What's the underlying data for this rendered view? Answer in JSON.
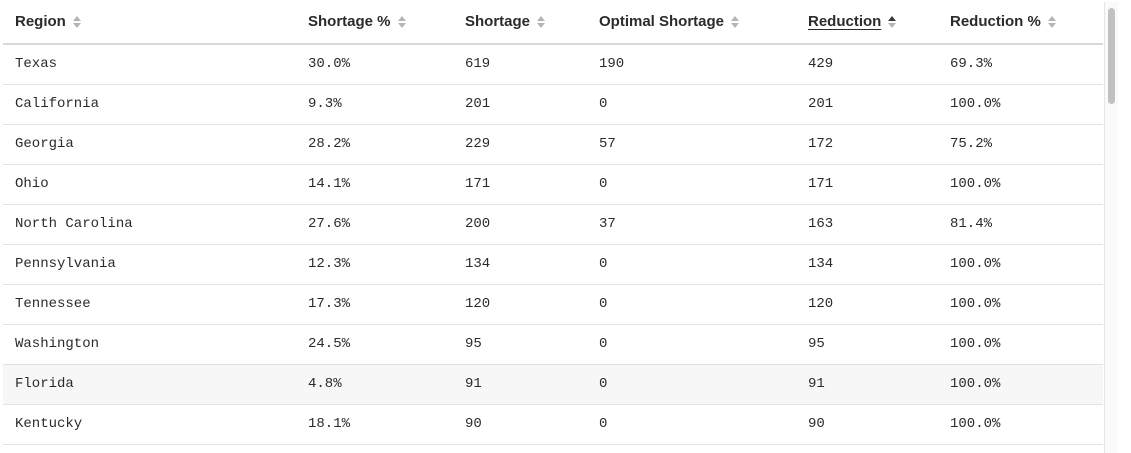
{
  "table": {
    "columns": [
      {
        "label": "Region",
        "sorted": false
      },
      {
        "label": "Shortage %",
        "sorted": false
      },
      {
        "label": "Shortage",
        "sorted": false
      },
      {
        "label": "Optimal Shortage",
        "sorted": false
      },
      {
        "label": "Reduction",
        "sorted": true,
        "sort_direction": "ascending"
      },
      {
        "label": "Reduction %",
        "sorted": false
      }
    ],
    "rows": [
      [
        "Texas",
        "30.0%",
        "619",
        "190",
        "429",
        "69.3%"
      ],
      [
        "California",
        "9.3%",
        "201",
        "0",
        "201",
        "100.0%"
      ],
      [
        "Georgia",
        "28.2%",
        "229",
        "57",
        "172",
        "75.2%"
      ],
      [
        "Ohio",
        "14.1%",
        "171",
        "0",
        "171",
        "100.0%"
      ],
      [
        "North Carolina",
        "27.6%",
        "200",
        "37",
        "163",
        "81.4%"
      ],
      [
        "Pennsylvania",
        "12.3%",
        "134",
        "0",
        "134",
        "100.0%"
      ],
      [
        "Tennessee",
        "17.3%",
        "120",
        "0",
        "120",
        "100.0%"
      ],
      [
        "Washington",
        "24.5%",
        "95",
        "0",
        "95",
        "100.0%"
      ],
      [
        "Florida",
        "4.8%",
        "91",
        "0",
        "91",
        "100.0%"
      ],
      [
        "Kentucky",
        "18.1%",
        "90",
        "0",
        "90",
        "100.0%"
      ]
    ],
    "hovered_row": 8
  },
  "colors": {
    "header_text": "#2b2b2b",
    "row_divider": "#e2e2e2",
    "header_divider": "#d9d9d9",
    "hover_row": "#f7f7f7",
    "sort_inactive": "#b5b5b5",
    "sort_active": "#3a3a3a"
  },
  "icons": {
    "sort": "sort-icon",
    "sort_active": "sort-ascending-icon"
  }
}
